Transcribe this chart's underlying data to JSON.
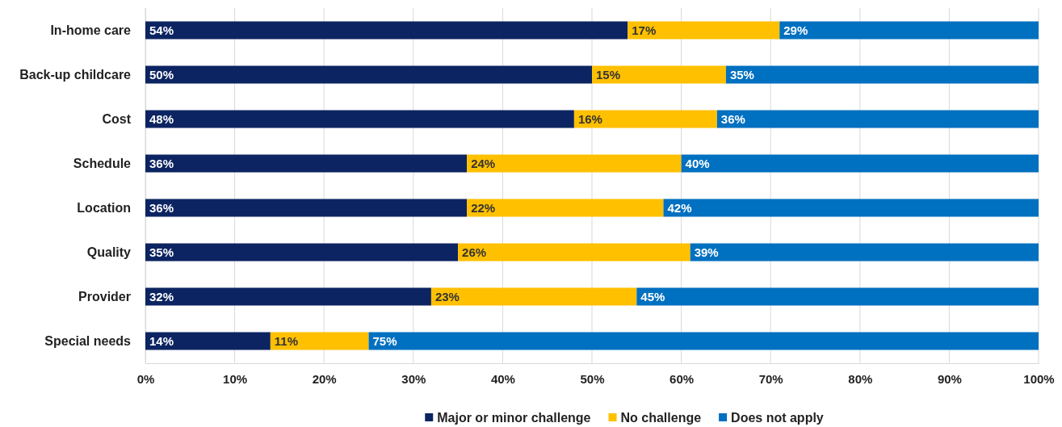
{
  "chart_data": {
    "type": "bar",
    "orientation": "horizontal",
    "stacked": true,
    "categories": [
      "In-home care",
      "Back-up childcare",
      "Cost",
      "Schedule",
      "Location",
      "Quality",
      "Provider",
      "Special needs"
    ],
    "series": [
      {
        "name": "Major or minor challenge",
        "color": "#0c2461",
        "values": [
          54,
          50,
          48,
          36,
          36,
          35,
          32,
          14
        ],
        "value_labels": [
          "54%",
          "50%",
          "48%",
          "36%",
          "36%",
          "35%",
          "32%",
          "14%"
        ]
      },
      {
        "name": "No challenge",
        "color": "#ffc000",
        "values": [
          17,
          15,
          16,
          24,
          22,
          26,
          23,
          11
        ],
        "value_labels": [
          "17%",
          "15%",
          "16%",
          "24%",
          "22%",
          "26%",
          "23%",
          "11%"
        ]
      },
      {
        "name": "Does not apply",
        "color": "#0070c0",
        "values": [
          29,
          35,
          36,
          40,
          42,
          39,
          45,
          75
        ],
        "value_labels": [
          "29%",
          "35%",
          "36%",
          "40%",
          "42%",
          "39%",
          "45%",
          "75%"
        ]
      }
    ],
    "xlim": [
      0,
      100
    ],
    "xticks": [
      {
        "value": 0,
        "label": "0%"
      },
      {
        "value": 10,
        "label": "10%"
      },
      {
        "value": 20,
        "label": "20%"
      },
      {
        "value": 30,
        "label": "30%"
      },
      {
        "value": 40,
        "label": "40%"
      },
      {
        "value": 50,
        "label": "50%"
      },
      {
        "value": 60,
        "label": "60%"
      },
      {
        "value": 70,
        "label": "70%"
      },
      {
        "value": 80,
        "label": "80%"
      },
      {
        "value": 90,
        "label": "90%"
      },
      {
        "value": 100,
        "label": "100%"
      }
    ],
    "grid": "x",
    "legend": "bottom"
  }
}
